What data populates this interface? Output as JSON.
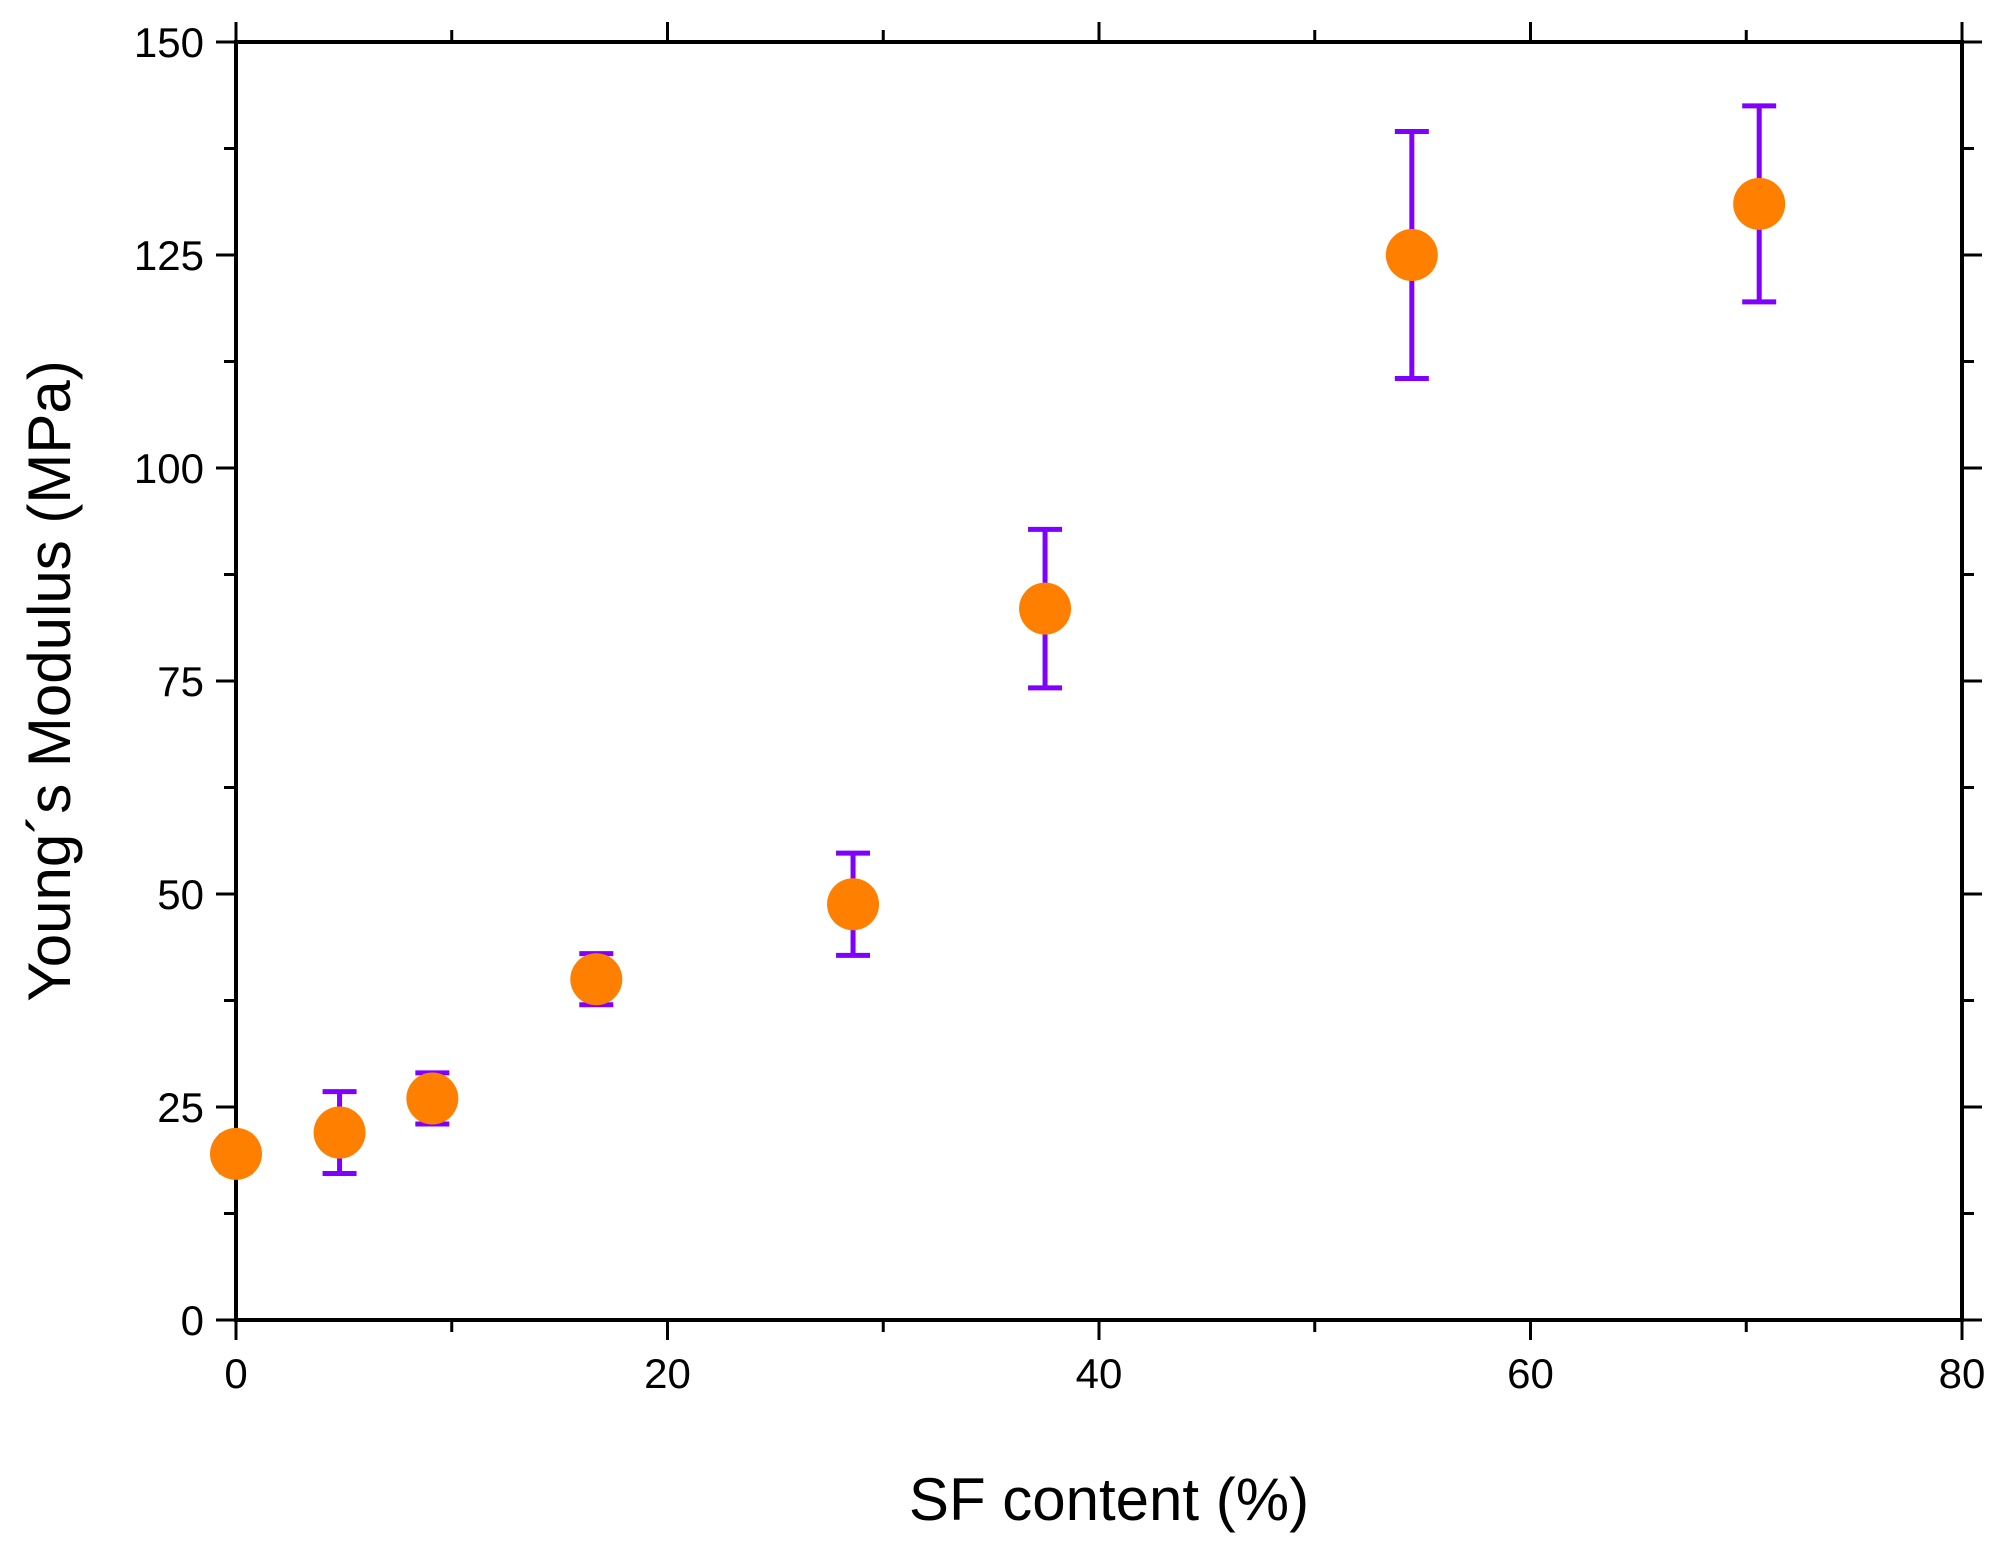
{
  "chart_data": {
    "type": "scatter",
    "title": "",
    "xlabel": "SF content (%)",
    "ylabel": "Young´s Modulus (MPa)",
    "xlim": [
      0,
      80
    ],
    "ylim": [
      0,
      150
    ],
    "x_ticks": [
      0,
      20,
      40,
      60,
      80
    ],
    "y_ticks": [
      0,
      25,
      50,
      75,
      100,
      125,
      150
    ],
    "grid": false,
    "legend": "none",
    "marker_color": "#FF8000",
    "errorbar_color": "#7F00FF",
    "series": [
      {
        "x": [
          0,
          4.8,
          9.1,
          16.7,
          28.6,
          37.5,
          54.5,
          70.6
        ],
        "y": [
          19.5,
          22,
          26,
          40,
          48.8,
          83.5,
          125,
          131
        ],
        "y_error": [
          2.1,
          4.8,
          3,
          3,
          6,
          9.3,
          14.5,
          11.5
        ]
      }
    ]
  }
}
